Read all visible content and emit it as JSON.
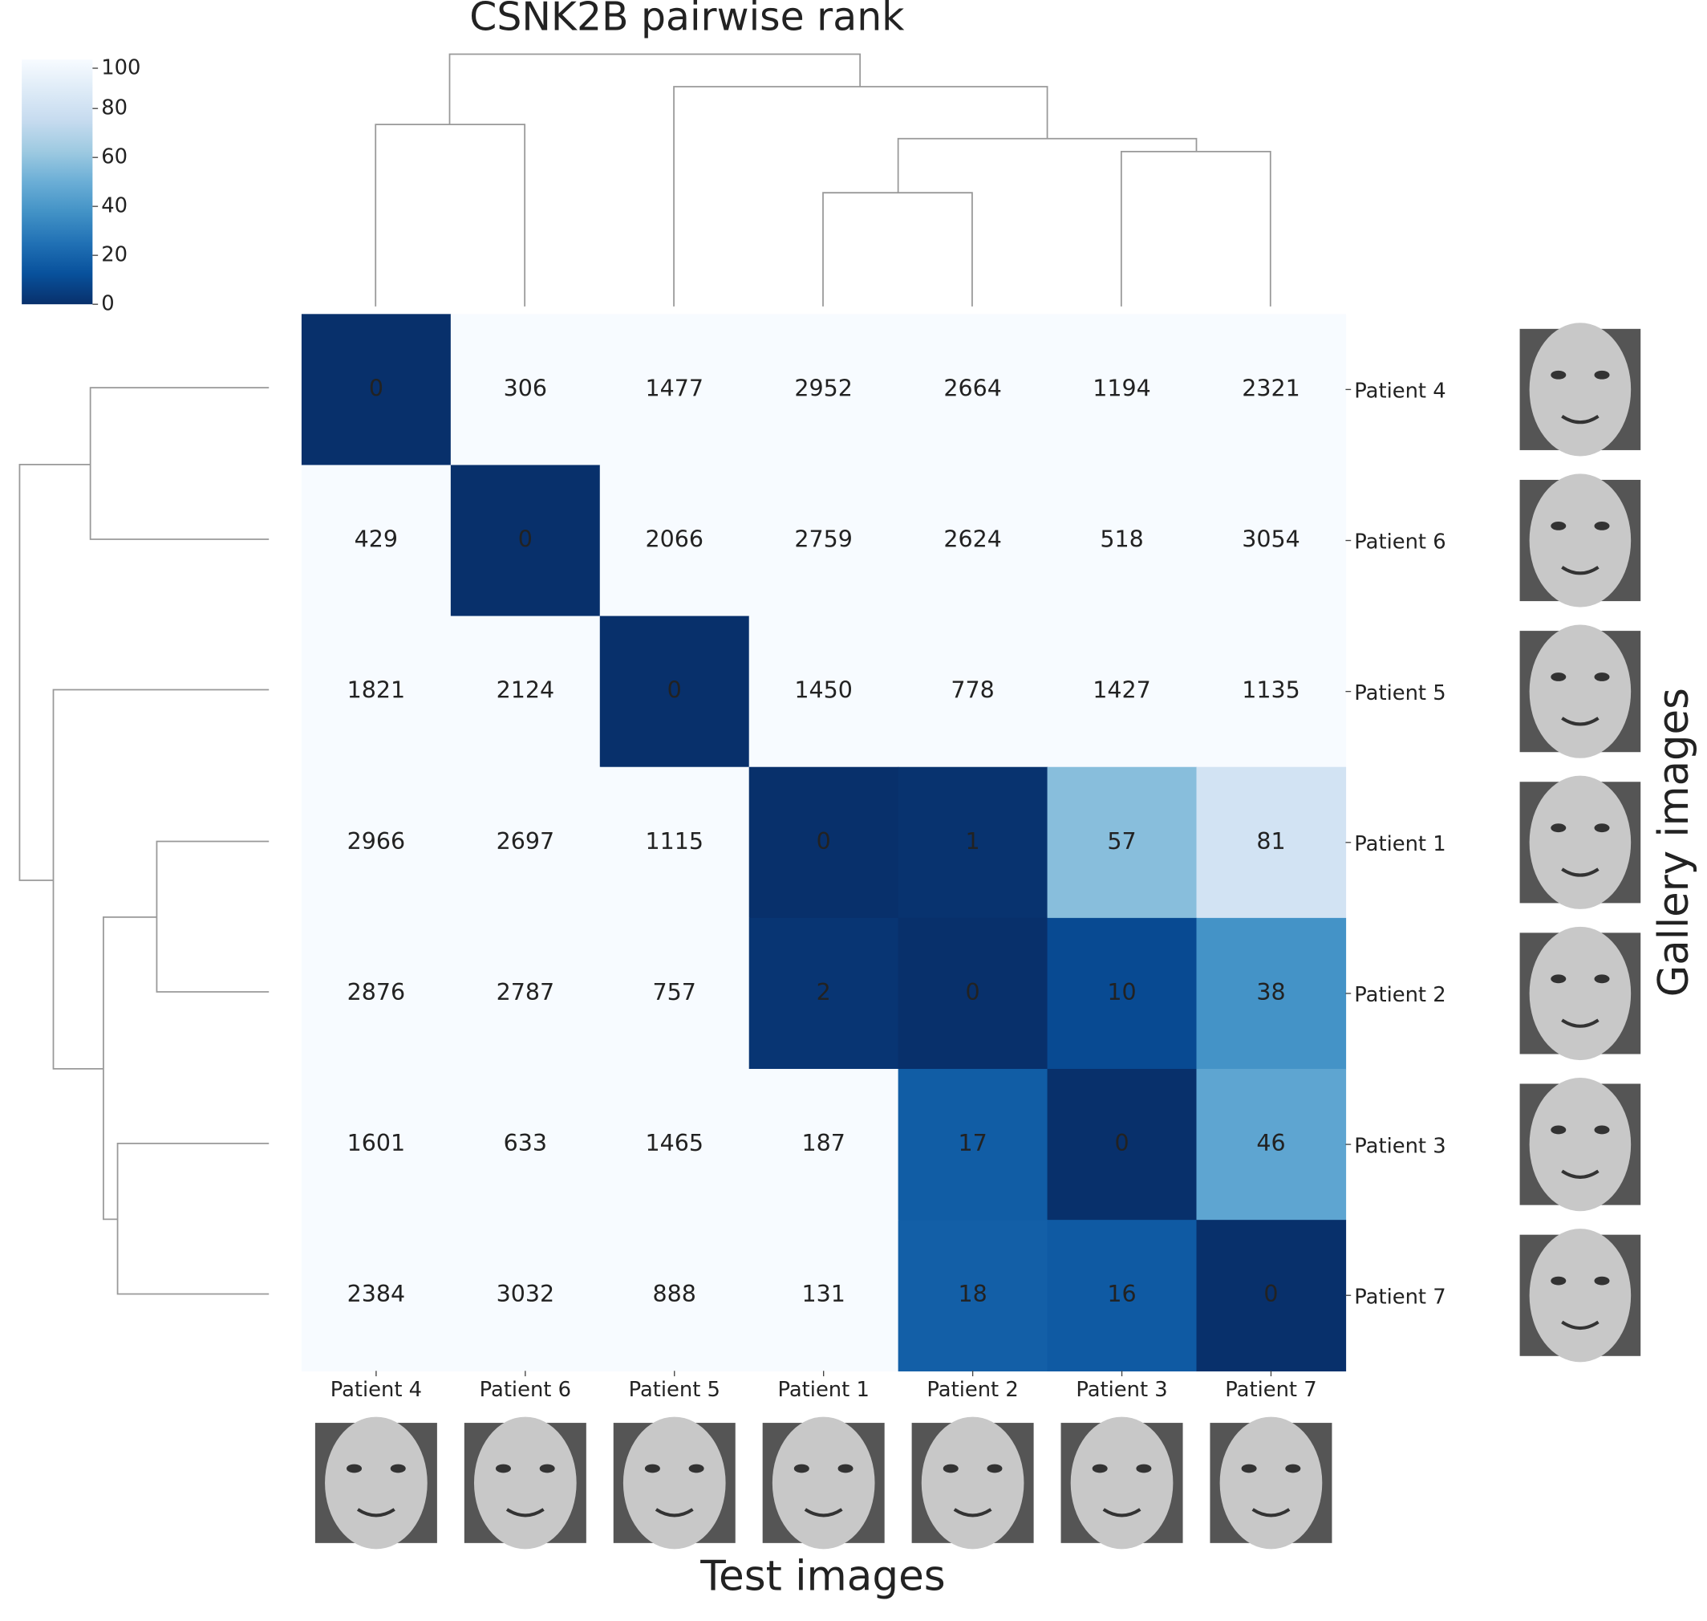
{
  "chart_data": {
    "type": "heatmap",
    "title": "CSNK2B pairwise rank",
    "x_label": "Test images",
    "y_label": "Gallery images",
    "x_categories": [
      "Patient 4",
      "Patient 6",
      "Patient 5",
      "Patient 1",
      "Patient 2",
      "Patient 3",
      "Patient 7"
    ],
    "y_categories": [
      "Patient 4",
      "Patient 6",
      "Patient 5",
      "Patient 1",
      "Patient 2",
      "Patient 3",
      "Patient 7"
    ],
    "values": [
      [
        0,
        306,
        1477,
        2952,
        2664,
        1194,
        2321
      ],
      [
        429,
        0,
        2066,
        2759,
        2624,
        518,
        3054
      ],
      [
        1821,
        2124,
        0,
        1450,
        778,
        1427,
        1135
      ],
      [
        2966,
        2697,
        1115,
        0,
        1,
        57,
        81
      ],
      [
        2876,
        2787,
        757,
        2,
        0,
        10,
        38
      ],
      [
        1601,
        633,
        1465,
        187,
        17,
        0,
        46
      ],
      [
        2384,
        3032,
        888,
        131,
        18,
        16,
        0
      ]
    ],
    "clim": [
      0,
      100
    ],
    "cticks": [
      0,
      20,
      40,
      60,
      80,
      100
    ],
    "colormap": [
      "#08306b",
      "#08519c",
      "#2171b5",
      "#4292c6",
      "#6baed6",
      "#9ecae1",
      "#c6dbef",
      "#deebf7",
      "#f7fbff"
    ]
  }
}
